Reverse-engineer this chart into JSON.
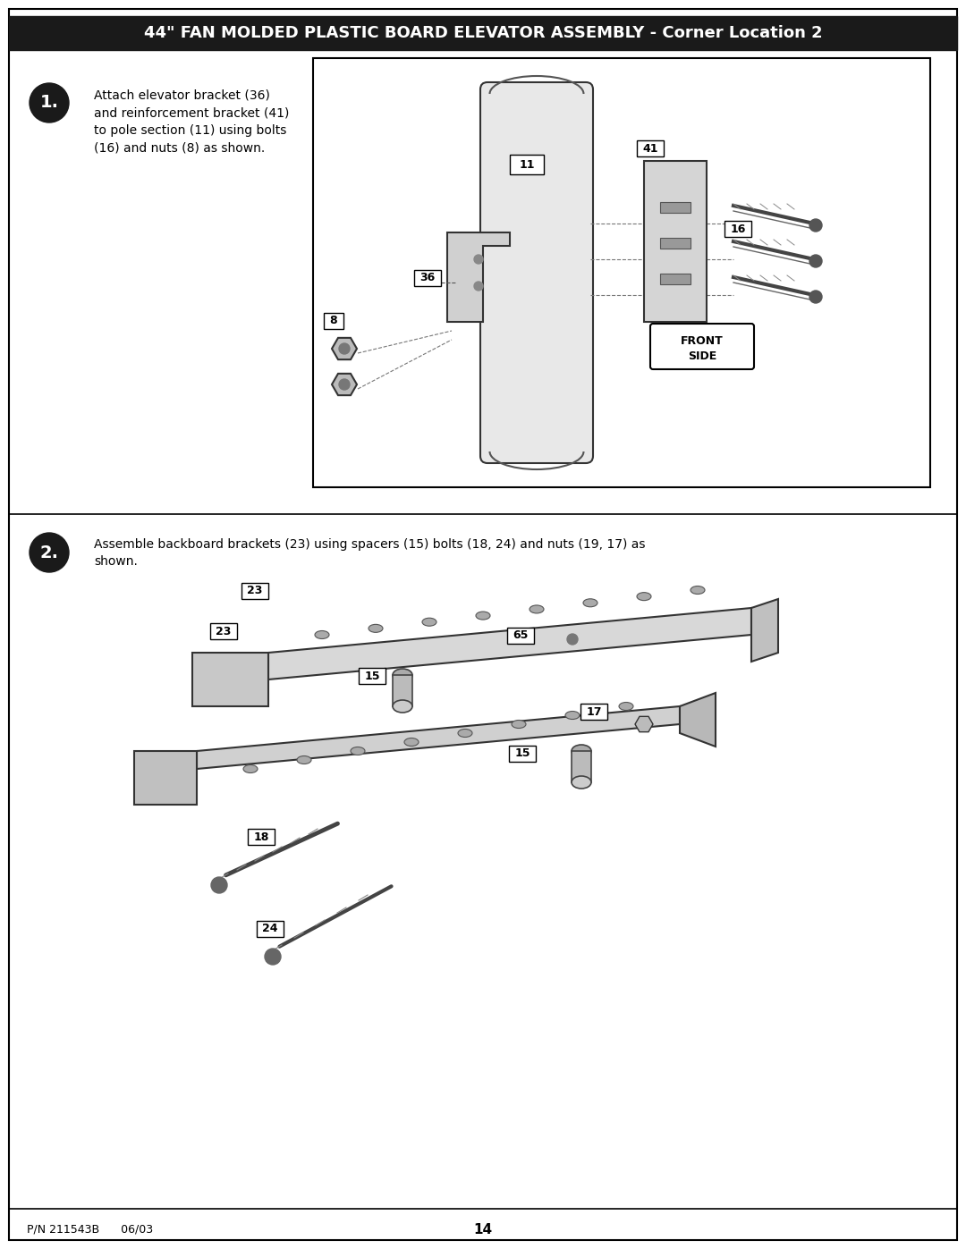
{
  "title": "44\" FAN MOLDED PLASTIC BOARD ELEVATOR ASSEMBLY - Corner Location 2",
  "title_bg": "#1a1a1a",
  "title_color": "#ffffff",
  "title_fontsize": 13,
  "page_bg": "#ffffff",
  "border_color": "#000000",
  "step1_number": "1.",
  "step1_text": "Attach elevator bracket (36)\nand reinforcement bracket (41)\nto pole section (11) using bolts\n(16) and nuts (8) as shown.",
  "step2_number": "2.",
  "step2_text": "Assemble backboard brackets (23) using spacers (15) bolts (18, 24) and nuts (19, 17) as\nshown.",
  "footer_left": "P/N 211543B      06/03",
  "footer_center": "14",
  "fig_width": 10.8,
  "fig_height": 13.97
}
